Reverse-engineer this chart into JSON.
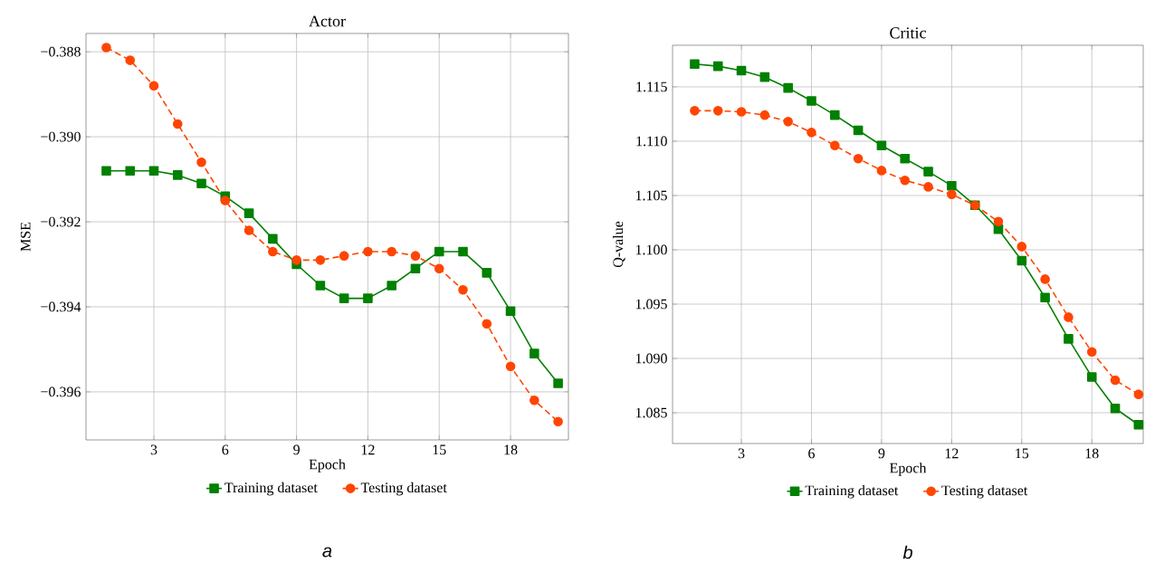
{
  "chart_data": [
    {
      "type": "line",
      "title": "Actor",
      "xlabel": "Epoch",
      "ylabel": "MSE",
      "x": [
        1,
        2,
        3,
        4,
        5,
        6,
        7,
        8,
        9,
        10,
        11,
        12,
        13,
        14,
        15,
        16,
        17,
        18,
        19,
        20
      ],
      "series": [
        {
          "name": "Training dataset",
          "color": "#008000",
          "marker": "square",
          "line_style": "solid",
          "values": [
            -0.3908,
            -0.3908,
            -0.3908,
            -0.3909,
            -0.3911,
            -0.3914,
            -0.3918,
            -0.3924,
            -0.393,
            -0.3935,
            -0.3938,
            -0.3938,
            -0.3935,
            -0.3931,
            -0.3927,
            -0.3927,
            -0.3932,
            -0.3941,
            -0.3951,
            -0.3958
          ]
        },
        {
          "name": "Testing dataset",
          "color": "#ff4500",
          "marker": "circle",
          "line_style": "dashed",
          "values": [
            -0.3879,
            -0.3882,
            -0.3888,
            -0.3897,
            -0.3906,
            -0.3915,
            -0.3922,
            -0.3927,
            -0.3929,
            -0.3929,
            -0.3928,
            -0.3927,
            -0.3927,
            -0.3928,
            -0.3931,
            -0.3936,
            -0.3944,
            -0.3954,
            -0.3962,
            -0.3967
          ]
        }
      ],
      "xlim": [
        0.145,
        20.435
      ],
      "ylim": [
        -0.39713,
        -0.38757
      ],
      "xticks": [
        3,
        6,
        9,
        12,
        15,
        18
      ],
      "yticks": [
        {
          "value": -0.396,
          "label": "−0.396"
        },
        {
          "value": -0.394,
          "label": "−0.394"
        },
        {
          "value": -0.392,
          "label": "−0.392"
        },
        {
          "value": -0.39,
          "label": "−0.390"
        },
        {
          "value": -0.388,
          "label": "−0.388"
        }
      ],
      "grid": true,
      "legend": "bottom",
      "annotations": [
        "a"
      ]
    },
    {
      "type": "line",
      "title": "Critic",
      "xlabel": "Epoch",
      "ylabel": "Q-value",
      "x": [
        1,
        2,
        3,
        4,
        5,
        6,
        7,
        8,
        9,
        10,
        11,
        12,
        13,
        14,
        15,
        16,
        17,
        18,
        19,
        20
      ],
      "series": [
        {
          "name": "Training dataset",
          "color": "#008000",
          "marker": "square",
          "line_style": "solid",
          "values": [
            1.1171,
            1.1169,
            1.1165,
            1.1159,
            1.1149,
            1.1137,
            1.1124,
            1.111,
            1.1096,
            1.1084,
            1.1072,
            1.1059,
            1.1041,
            1.1019,
            1.099,
            1.0956,
            1.0918,
            1.0883,
            1.0854,
            1.0839
          ]
        },
        {
          "name": "Testing dataset",
          "color": "#ff4500",
          "marker": "circle",
          "line_style": "dashed",
          "values": [
            1.1128,
            1.1128,
            1.1127,
            1.1124,
            1.1118,
            1.1108,
            1.1096,
            1.1084,
            1.1073,
            1.1064,
            1.1058,
            1.1051,
            1.1041,
            1.1026,
            1.1003,
            1.0973,
            1.0938,
            1.0906,
            1.088,
            1.0867
          ]
        }
      ],
      "xlim": [
        0.054,
        20.2
      ],
      "ylim": [
        1.08217,
        1.11883
      ],
      "xticks": [
        3,
        6,
        9,
        12,
        15,
        18
      ],
      "yticks": [
        {
          "value": 1.085,
          "label": "1.085"
        },
        {
          "value": 1.09,
          "label": "1.090"
        },
        {
          "value": 1.095,
          "label": "1.095"
        },
        {
          "value": 1.1,
          "label": "1.100"
        },
        {
          "value": 1.105,
          "label": "1.105"
        },
        {
          "value": 1.11,
          "label": "1.110"
        },
        {
          "value": 1.115,
          "label": "1.115"
        }
      ],
      "grid": true,
      "legend": "bottom",
      "annotations": [
        "b"
      ]
    }
  ]
}
